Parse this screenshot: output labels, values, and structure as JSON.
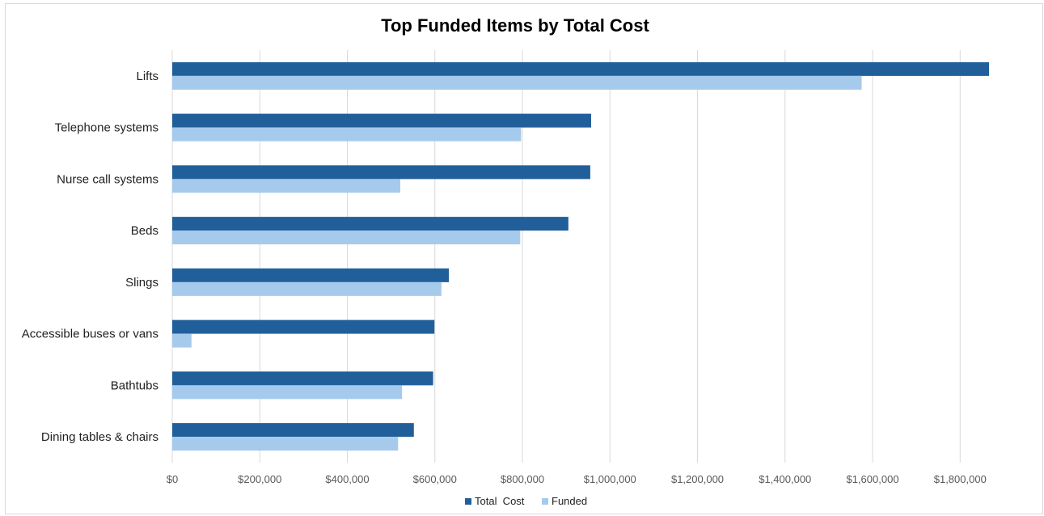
{
  "chart_data": {
    "type": "bar",
    "orientation": "horizontal",
    "title": "Top Funded Items by Total Cost",
    "xlabel": "",
    "ylabel": "",
    "xlim": [
      0,
      1866000
    ],
    "x_ticks": [
      "$0",
      "$200,000",
      "$400,000",
      "$600,000",
      "$800,000",
      "$1,000,000",
      "$1,200,000",
      "$1,400,000",
      "$1,600,000",
      "$1,800,000"
    ],
    "x_tick_values": [
      0,
      200000,
      400000,
      600000,
      800000,
      1000000,
      1200000,
      1400000,
      1600000,
      1800000
    ],
    "grid": true,
    "legend_position": "bottom",
    "categories": [
      "Lifts",
      "Telephone systems",
      "Nurse call systems",
      "Beds",
      "Slings",
      "Accessible buses or vans",
      "Bathtubs",
      "Dining tables & chairs"
    ],
    "series": [
      {
        "name": "Total  Cost",
        "color": "#215f9a",
        "values": [
          1866000,
          957000,
          955000,
          905000,
          632000,
          599000,
          596000,
          552000
        ]
      },
      {
        "name": "Funded",
        "color": "#a6caec",
        "values": [
          1575000,
          797000,
          521000,
          795000,
          615000,
          44000,
          525000,
          516000
        ]
      }
    ]
  }
}
